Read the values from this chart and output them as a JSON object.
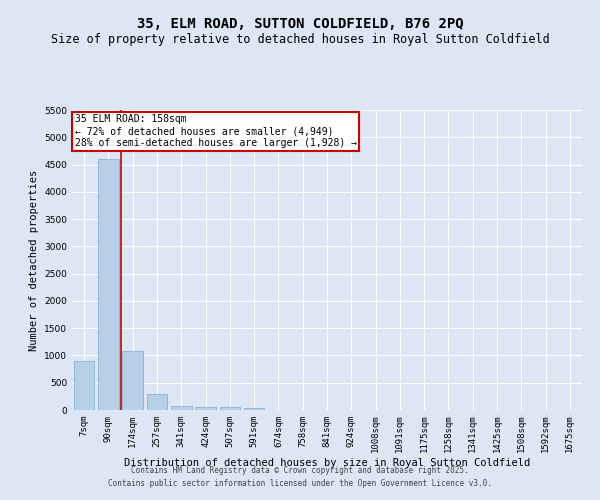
{
  "title": "35, ELM ROAD, SUTTON COLDFIELD, B76 2PQ",
  "subtitle": "Size of property relative to detached houses in Royal Sutton Coldfield",
  "xlabel": "Distribution of detached houses by size in Royal Sutton Coldfield",
  "ylabel": "Number of detached properties",
  "categories": [
    "7sqm",
    "90sqm",
    "174sqm",
    "257sqm",
    "341sqm",
    "424sqm",
    "507sqm",
    "591sqm",
    "674sqm",
    "758sqm",
    "841sqm",
    "924sqm",
    "1008sqm",
    "1091sqm",
    "1175sqm",
    "1258sqm",
    "1341sqm",
    "1425sqm",
    "1508sqm",
    "1592sqm",
    "1675sqm"
  ],
  "values": [
    900,
    4600,
    1080,
    300,
    70,
    60,
    50,
    30,
    0,
    0,
    0,
    0,
    0,
    0,
    0,
    0,
    0,
    0,
    0,
    0,
    0
  ],
  "bar_color": "#b8cfe8",
  "bar_edge_color": "#7aaed4",
  "bar_width": 0.85,
  "ylim": [
    0,
    5500
  ],
  "yticks": [
    0,
    500,
    1000,
    1500,
    2000,
    2500,
    3000,
    3500,
    4000,
    4500,
    5000,
    5500
  ],
  "vline_x": 1.5,
  "vline_color": "#cc0000",
  "annotation_title": "35 ELM ROAD: 158sqm",
  "annotation_line1": "← 72% of detached houses are smaller (4,949)",
  "annotation_line2": "28% of semi-detached houses are larger (1,928) →",
  "annotation_box_color": "#cc0000",
  "background_color": "#dce6f5",
  "plot_bg_color": "#dce6f5",
  "grid_color": "#ffffff",
  "footer_line1": "Contains HM Land Registry data © Crown copyright and database right 2025.",
  "footer_line2": "Contains public sector information licensed under the Open Government Licence v3.0.",
  "title_fontsize": 10,
  "subtitle_fontsize": 8.5,
  "axis_label_fontsize": 7.5,
  "tick_fontsize": 6.5,
  "annotation_fontsize": 7,
  "footer_fontsize": 5.5
}
